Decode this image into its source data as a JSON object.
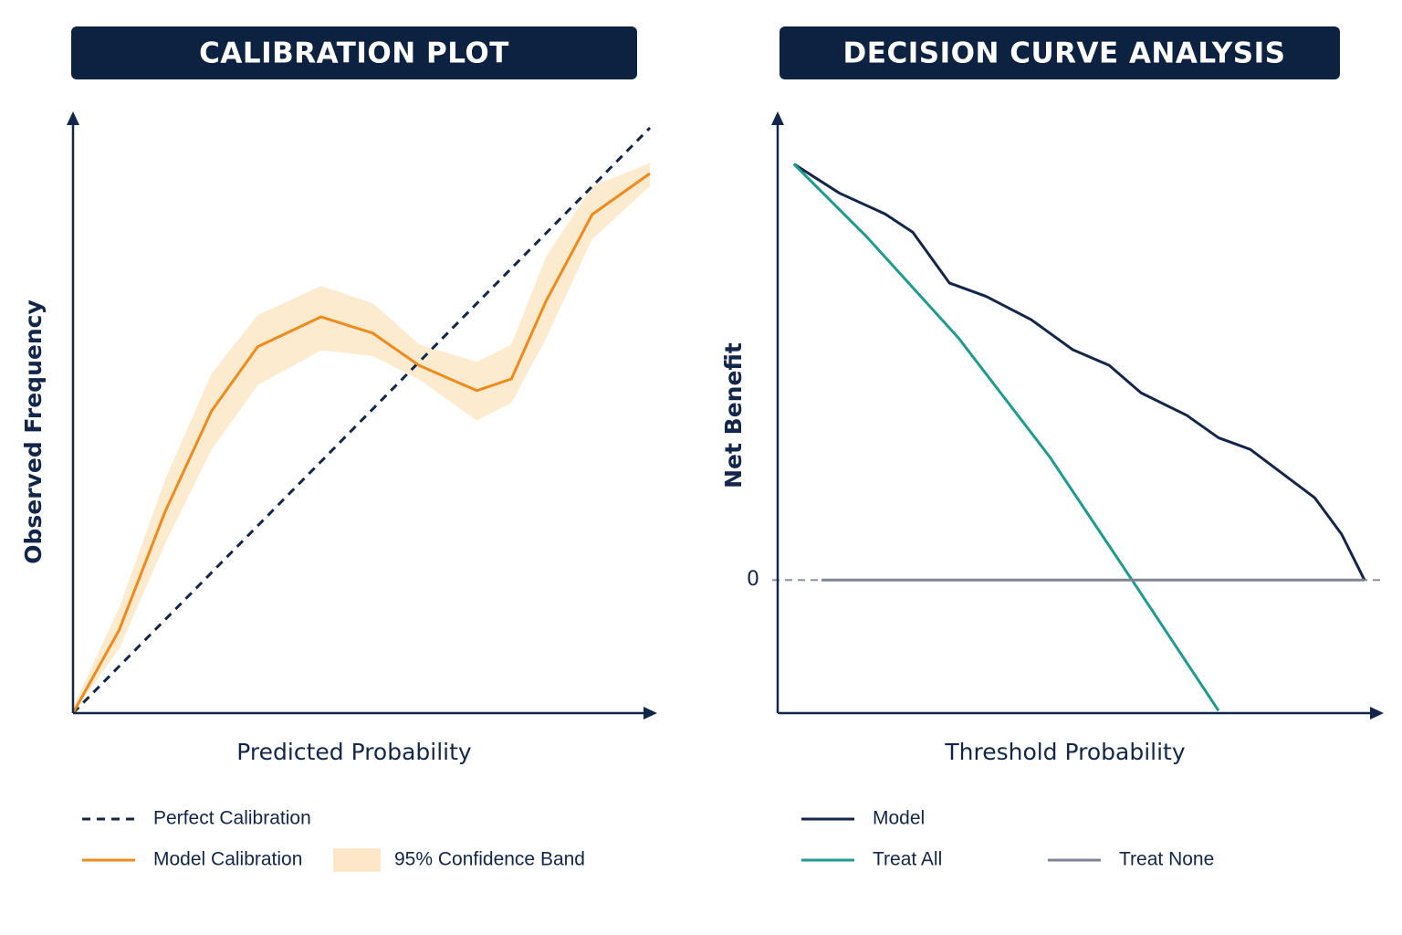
{
  "chart_data": [
    {
      "type": "line",
      "title": "CALIBRATION PLOT",
      "xlabel": "Predicted Probability",
      "ylabel": "Observed Frequency",
      "xlim": [
        0,
        1
      ],
      "ylim": [
        0,
        1
      ],
      "legend": "bottom",
      "x": [
        0,
        0.08,
        0.16,
        0.24,
        0.32,
        0.43,
        0.52,
        0.6,
        0.7,
        0.76,
        0.82,
        0.9,
        1.0
      ],
      "series": [
        {
          "name": "Perfect Calibration",
          "color": "#13264a",
          "dash": true,
          "values": [
            0,
            0.08,
            0.16,
            0.24,
            0.32,
            0.43,
            0.52,
            0.6,
            0.7,
            0.76,
            0.82,
            0.9,
            1.0
          ]
        },
        {
          "name": "Model Calibration",
          "color": "#ef8a1c",
          "values": [
            0,
            0.142,
            0.345,
            0.516,
            0.626,
            0.677,
            0.649,
            0.594,
            0.551,
            0.571,
            0.704,
            0.852,
            0.922
          ]
        },
        {
          "name": "95% Confidence Band",
          "color": "#fde7c8",
          "band": true,
          "lower": [
            0,
            0.11,
            0.29,
            0.45,
            0.56,
            0.62,
            0.61,
            0.57,
            0.5,
            0.53,
            0.64,
            0.81,
            0.9
          ],
          "upper": [
            0.01,
            0.18,
            0.4,
            0.58,
            0.68,
            0.73,
            0.7,
            0.63,
            0.6,
            0.63,
            0.78,
            0.9,
            0.94
          ]
        }
      ]
    },
    {
      "type": "line",
      "title": "DECISION CURVE ANALYSIS",
      "xlabel": "Threshold Probability",
      "ylabel": "Net Benefit",
      "xlim": [
        0,
        1
      ],
      "ylim": [
        -0.16,
        0.56
      ],
      "yticks": [
        0
      ],
      "grid": true,
      "legend": "bottom",
      "series": [
        {
          "name": "Model",
          "color": "#13264a",
          "x": [
            0.027,
            0.103,
            0.179,
            0.225,
            0.286,
            0.347,
            0.422,
            0.491,
            0.552,
            0.605,
            0.681,
            0.734,
            0.787,
            0.833,
            0.894,
            0.939,
            0.977
          ],
          "values": [
            0.5,
            0.465,
            0.44,
            0.418,
            0.357,
            0.341,
            0.313,
            0.277,
            0.258,
            0.225,
            0.198,
            0.171,
            0.157,
            0.132,
            0.099,
            0.055,
            0
          ]
        },
        {
          "name": "Treat All",
          "color": "#1f9a8f",
          "x": [
            0.027,
            0.149,
            0.301,
            0.453,
            0.59,
            0.734
          ],
          "values": [
            0.5,
            0.412,
            0.291,
            0.148,
            0,
            -0.157
          ]
        },
        {
          "name": "Treat None",
          "color": "#7d8594",
          "x": [
            0.073,
            0.977
          ],
          "values": [
            0,
            0
          ]
        }
      ]
    }
  ]
}
